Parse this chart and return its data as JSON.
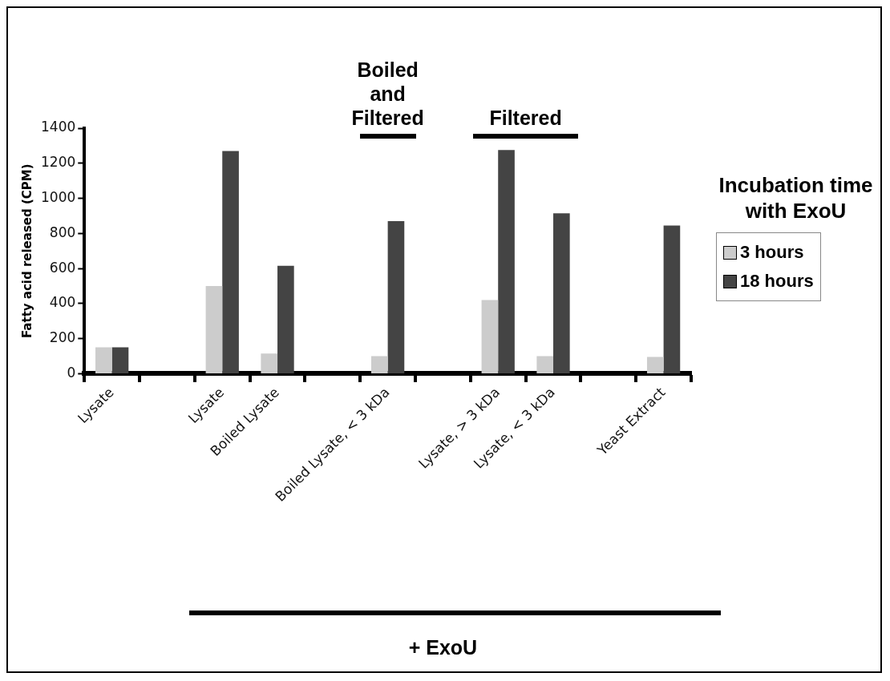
{
  "chart_data": {
    "type": "bar",
    "ylabel": "Fatty acid released (CPM)",
    "legend_title": "Incubation time with ExoU",
    "categories": [
      "Lysate",
      null,
      "Lysate",
      "Boiled Lysate",
      null,
      "Boiled Lysate, < 3 kDa",
      null,
      "Lysate, > 3 kDa",
      "Lysate, < 3 kDa",
      null,
      "Yeast Extract"
    ],
    "series": [
      {
        "name": "3 hours",
        "color": "#cccccc",
        "values": [
          150,
          null,
          500,
          115,
          null,
          100,
          null,
          420,
          100,
          null,
          95
        ]
      },
      {
        "name": "18 hours",
        "color": "#444444",
        "values": [
          150,
          null,
          1270,
          615,
          null,
          870,
          null,
          1275,
          915,
          null,
          845
        ]
      }
    ],
    "ylim": [
      0,
      1400
    ],
    "yticks": [
      0,
      200,
      400,
      600,
      800,
      1000,
      1200,
      1400
    ],
    "grid": false,
    "legend": "right",
    "annotations": [
      "Boiled and Filtered",
      "Filtered",
      "+ ExoU"
    ]
  }
}
